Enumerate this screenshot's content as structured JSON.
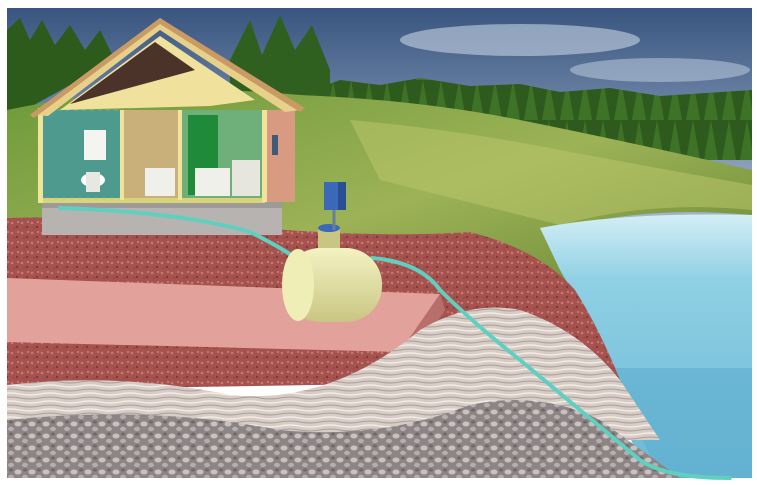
{
  "scene": {
    "description_labels": [],
    "colors": {
      "sky_top": "#3f5f8c",
      "sky_bottom": "#a9bdd6",
      "hill_green": "#5f8a2e",
      "hill_light": "#a7b85a",
      "lake": "#7fc7de",
      "lake_deep": "#4fa3c6",
      "red_soil": "#a04c4c",
      "pink_slab": "#e7a7a2",
      "rock_light": "#e7dcd3",
      "rock_dark": "#8b8a8c",
      "house_wall": "#f2e39a",
      "roof": "#e9d28b",
      "roof_dark": "#4a3328",
      "bathroom_tile": "#4f9a8e",
      "garage_wall": "#d79c86",
      "pipe": "#5fd0c0",
      "tank": "#e8e7a3",
      "box_blue": "#3b68b8"
    }
  }
}
